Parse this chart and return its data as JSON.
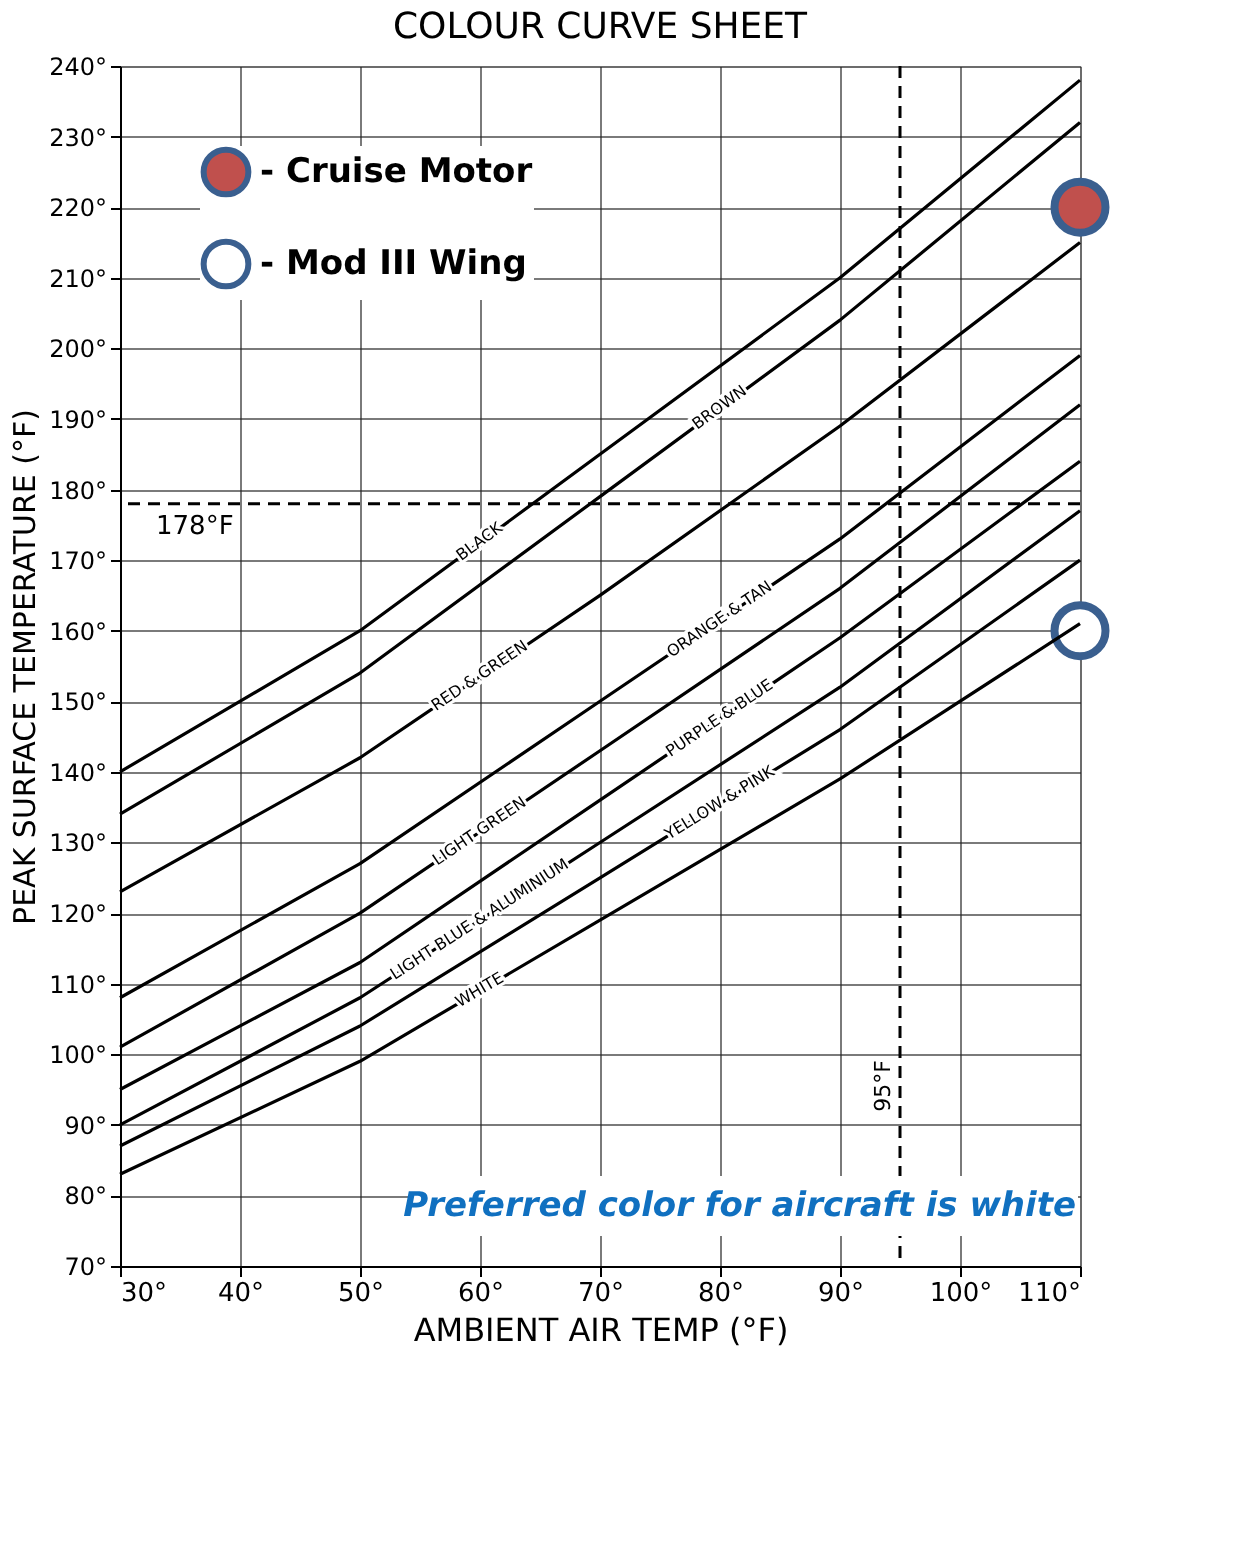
{
  "chart_data": {
    "type": "line",
    "title": "COLOUR CURVE SHEET",
    "xlabel": "AMBIENT AIR TEMP (°F)",
    "ylabel": "PEAK SURFACE TEMPERATURE (°F)",
    "x": [
      30,
      50,
      70,
      90,
      110
    ],
    "series": [
      {
        "name": "BLACK",
        "color": "#000000",
        "values": [
          140,
          160,
          185,
          210,
          238
        ]
      },
      {
        "name": "BROWN",
        "color": "#000000",
        "values": [
          134,
          154,
          179,
          204,
          232
        ]
      },
      {
        "name": "RED & GREEN",
        "color": "#000000",
        "values": [
          123,
          142,
          165,
          189,
          215
        ]
      },
      {
        "name": "ORANGE & TAN",
        "color": "#000000",
        "values": [
          108,
          127,
          150,
          173,
          199
        ]
      },
      {
        "name": "LIGHT GREEN",
        "color": "#000000",
        "values": [
          101,
          120,
          143,
          166,
          192
        ]
      },
      {
        "name": "PURPLE & BLUE",
        "color": "#000000",
        "values": [
          95,
          113,
          136,
          159,
          184
        ]
      },
      {
        "name": "LIGHT BLUE & ALUMINIUM",
        "color": "#000000",
        "values": [
          90,
          108,
          130,
          152,
          177
        ]
      },
      {
        "name": "YELLOW & PINK",
        "color": "#000000",
        "values": [
          87,
          104,
          125,
          146,
          170
        ]
      },
      {
        "name": "WHITE",
        "color": "#000000",
        "values": [
          83,
          99,
          119,
          139,
          161
        ]
      },
      {
        "name": "- Cruise Motor",
        "type": "scatter",
        "marker": "circle",
        "color": "#c0504d",
        "x": [
          110
        ],
        "values": [
          220
        ]
      },
      {
        "name": "- Mod III Wing",
        "type": "scatter",
        "marker": "circle",
        "color": "#ffffff",
        "x": [
          110
        ],
        "values": [
          160
        ]
      }
    ],
    "xlim": [
      30,
      110
    ],
    "ylim": [
      70,
      240
    ],
    "xticks": [
      {
        "value": 30,
        "label": "30°"
      },
      {
        "value": 40,
        "label": "40°"
      },
      {
        "value": 50,
        "label": "50°"
      },
      {
        "value": 60,
        "label": "60°"
      },
      {
        "value": 70,
        "label": "70°"
      },
      {
        "value": 80,
        "label": "80°"
      },
      {
        "value": 90,
        "label": "90°"
      },
      {
        "value": 100,
        "label": "100°"
      },
      {
        "value": 110,
        "label": "110°"
      }
    ],
    "yticks": [
      {
        "value": 70,
        "label": "70°"
      },
      {
        "value": 80,
        "label": "80°"
      },
      {
        "value": 90,
        "label": "90°"
      },
      {
        "value": 100,
        "label": "100°"
      },
      {
        "value": 110,
        "label": "110°"
      },
      {
        "value": 120,
        "label": "120°"
      },
      {
        "value": 130,
        "label": "130°"
      },
      {
        "value": 140,
        "label": "140°"
      },
      {
        "value": 150,
        "label": "150°"
      },
      {
        "value": 160,
        "label": "160°"
      },
      {
        "value": 170,
        "label": "170°"
      },
      {
        "value": 180,
        "label": "180°"
      },
      {
        "value": 190,
        "label": "190°"
      },
      {
        "value": 200,
        "label": "200°"
      },
      {
        "value": 210,
        "label": "210°"
      },
      {
        "value": 220,
        "label": "220°"
      },
      {
        "value": 230,
        "label": "230°"
      },
      {
        "value": 240,
        "label": "240°"
      }
    ],
    "ref_lines": [
      {
        "axis": "y",
        "value": 178,
        "label": "178°F",
        "line_style": "dashed",
        "color": "#000000"
      },
      {
        "axis": "x",
        "value": 95,
        "label": "95°F",
        "line_style": "dashed",
        "color": "#000000"
      }
    ],
    "annotations": [
      "Preferred color for aircraft is white"
    ],
    "grid": true,
    "legend": "top left",
    "line_style": "solid"
  }
}
